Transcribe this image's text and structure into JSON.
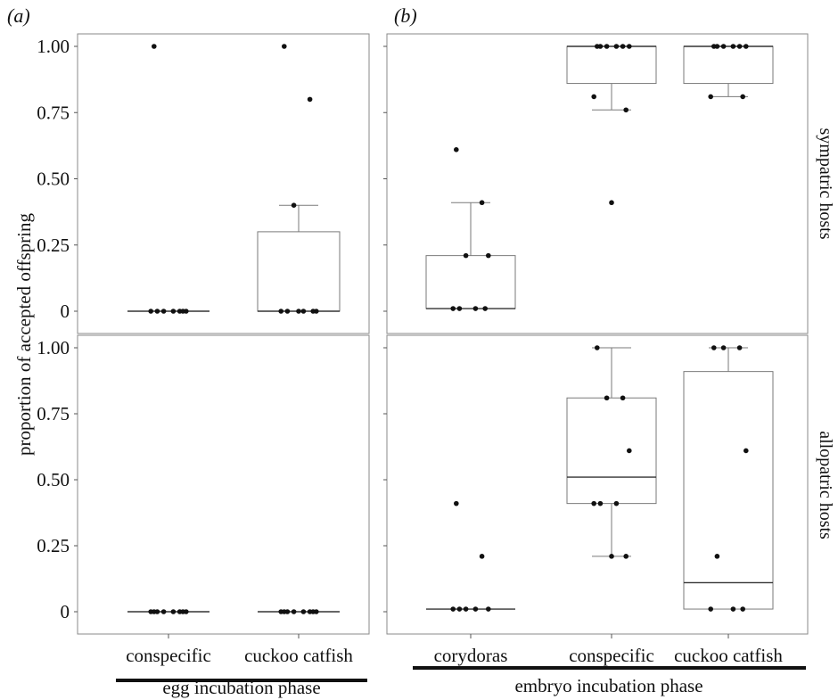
{
  "chart_data": {
    "type": "box",
    "ylabel": "proportion of accepted offspring",
    "ylim": [
      0,
      1
    ],
    "yticks": [
      "0",
      "0.25",
      "0.50",
      "0.75",
      "1.00"
    ],
    "row_labels": [
      "sympatric hosts",
      "allopatric hosts"
    ],
    "panels": [
      {
        "tag": "(a)",
        "phase": "egg incubation phase",
        "categories": [
          "conspecific",
          "cuckoo catfish"
        ]
      },
      {
        "tag": "(b)",
        "phase": "embryo incubation phase",
        "categories": [
          "corydoras",
          "conspecific",
          "cuckoo catfish"
        ]
      }
    ],
    "facets": [
      {
        "panel": 0,
        "row": 0,
        "groups": [
          {
            "category": "conspecific",
            "q1": 0,
            "median": 0,
            "q3": 0,
            "whisker_low": 0,
            "whisker_high": 0,
            "points": [
              1.0,
              0,
              0,
              0,
              0,
              0,
              0,
              0
            ]
          },
          {
            "category": "cuckoo catfish",
            "q1": 0,
            "median": 0,
            "q3": 0.3,
            "whisker_low": 0,
            "whisker_high": 0.4,
            "points": [
              1.0,
              0.8,
              0.4,
              0,
              0,
              0,
              0,
              0,
              0
            ]
          }
        ]
      },
      {
        "panel": 1,
        "row": 0,
        "groups": [
          {
            "category": "corydoras",
            "q1": 0.01,
            "median": 0.01,
            "q3": 0.21,
            "whisker_low": 0.01,
            "whisker_high": 0.41,
            "points": [
              0.61,
              0.41,
              0.21,
              0.21,
              0.01,
              0.01,
              0.01,
              0.01
            ]
          },
          {
            "category": "conspecific",
            "q1": 0.86,
            "median": 1.0,
            "q3": 1.0,
            "whisker_low": 0.76,
            "whisker_high": 1.0,
            "points": [
              1.0,
              1.0,
              1.0,
              1.0,
              1.0,
              1.0,
              0.81,
              0.76,
              0.41
            ]
          },
          {
            "category": "cuckoo catfish",
            "q1": 0.86,
            "median": 1.0,
            "q3": 1.0,
            "whisker_low": 0.81,
            "whisker_high": 1.0,
            "points": [
              1.0,
              1.0,
              1.0,
              1.0,
              1.0,
              1.0,
              0.81,
              0.81
            ]
          }
        ]
      },
      {
        "panel": 0,
        "row": 1,
        "groups": [
          {
            "category": "conspecific",
            "q1": 0,
            "median": 0,
            "q3": 0,
            "whisker_low": 0,
            "whisker_high": 0,
            "points": [
              0,
              0,
              0,
              0,
              0,
              0,
              0,
              0
            ]
          },
          {
            "category": "cuckoo catfish",
            "q1": 0,
            "median": 0,
            "q3": 0,
            "whisker_low": 0,
            "whisker_high": 0,
            "points": [
              0,
              0,
              0,
              0,
              0,
              0,
              0,
              0
            ]
          }
        ]
      },
      {
        "panel": 1,
        "row": 1,
        "groups": [
          {
            "category": "corydoras",
            "q1": 0.01,
            "median": 0.01,
            "q3": 0.01,
            "whisker_low": 0.01,
            "whisker_high": 0.01,
            "points": [
              0.41,
              0.21,
              0.01,
              0.01,
              0.01,
              0.01,
              0.01
            ]
          },
          {
            "category": "conspecific",
            "q1": 0.41,
            "median": 0.51,
            "q3": 0.81,
            "whisker_low": 0.21,
            "whisker_high": 1.0,
            "points": [
              1.0,
              0.81,
              0.81,
              0.61,
              0.41,
              0.41,
              0.41,
              0.21,
              0.21
            ]
          },
          {
            "category": "cuckoo catfish",
            "q1": 0.01,
            "median": 0.11,
            "q3": 0.91,
            "whisker_low": 0.01,
            "whisker_high": 1.0,
            "points": [
              1.0,
              1.0,
              1.0,
              0.61,
              0.21,
              0.01,
              0.01,
              0.01
            ]
          }
        ]
      }
    ]
  }
}
